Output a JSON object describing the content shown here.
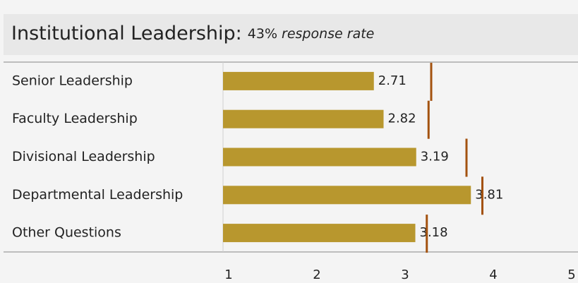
{
  "chart_data": {
    "type": "bar",
    "orientation": "horizontal",
    "title": "Institutional Leadership:",
    "response_rate_label": "43%",
    "response_rate_text": "response rate",
    "categories": [
      "Senior Leadership",
      "Faculty Leadership",
      "Divisional Leadership",
      "Departmental Leadership",
      "Other Questions"
    ],
    "values": [
      2.71,
      2.82,
      3.19,
      3.81,
      3.18
    ],
    "color": "#b8972e",
    "benchmarks": {
      "color": "#a3520f",
      "values": [
        3.36,
        3.33,
        3.76,
        3.94,
        3.31
      ]
    },
    "xlim": [
      1,
      5
    ],
    "xticks": [
      1,
      2,
      3,
      4,
      5
    ]
  }
}
